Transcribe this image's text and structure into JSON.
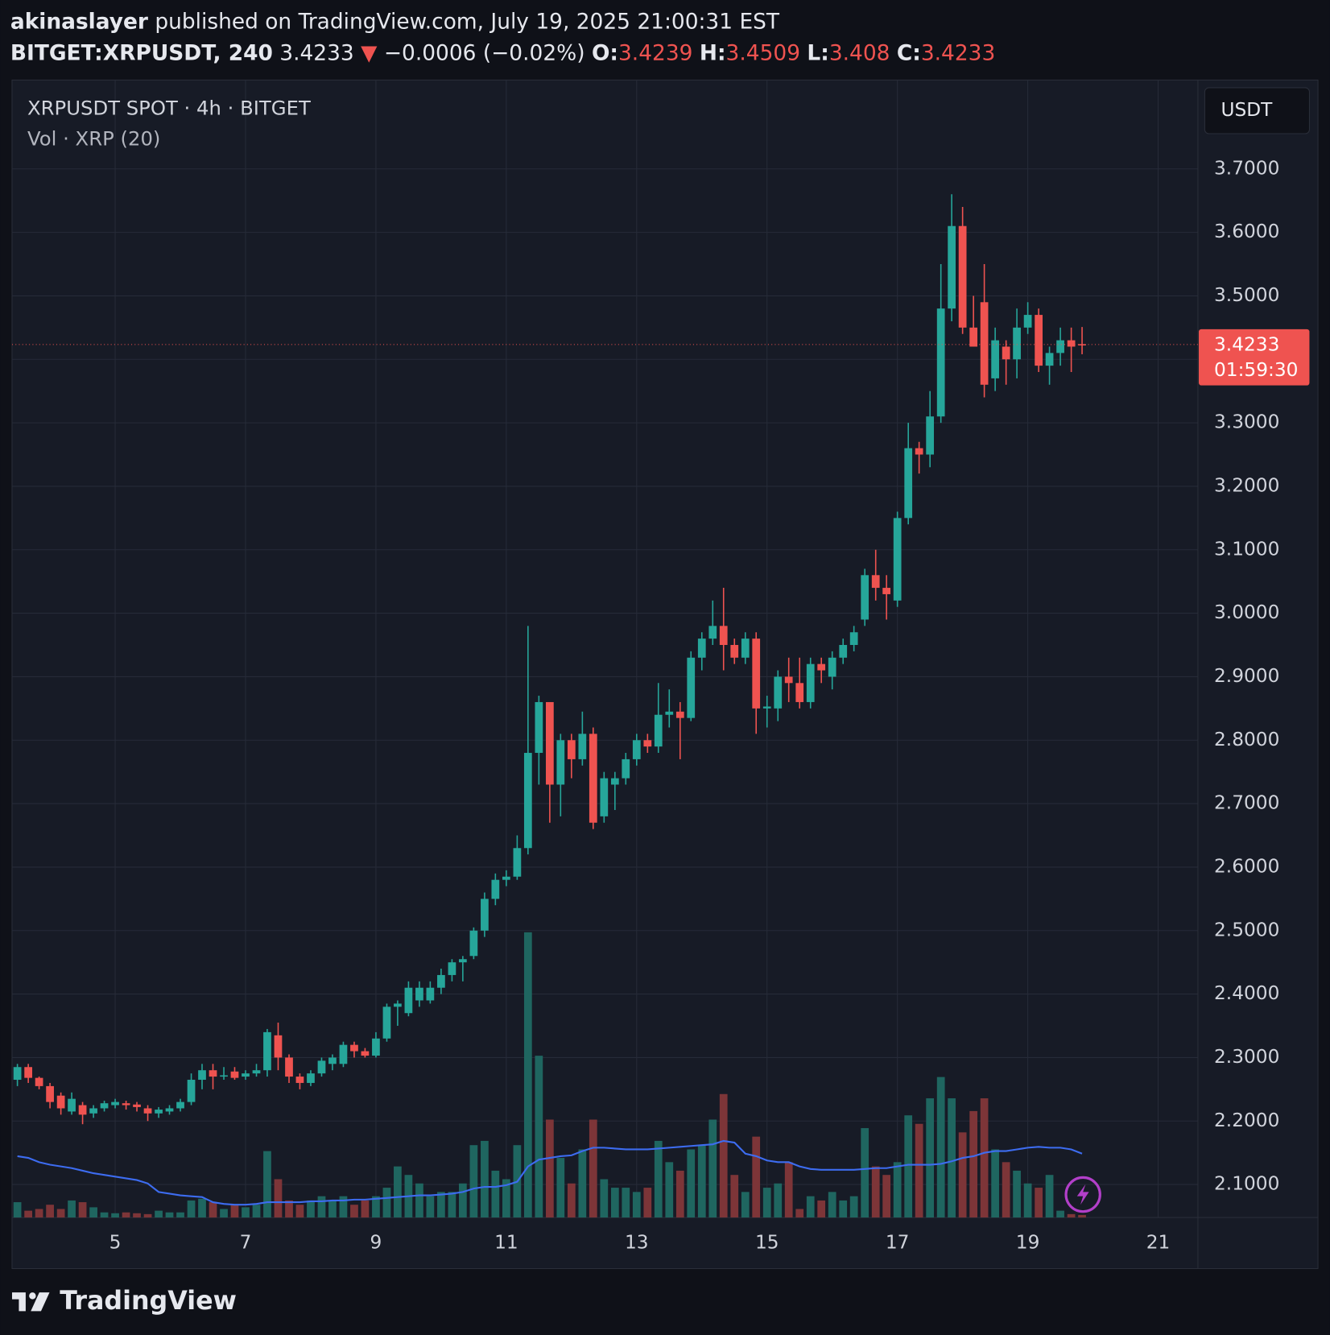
{
  "header": {
    "author": "akinaslayer",
    "published": "published on TradingView.com, July 19, 2025 21:00:31 EST",
    "symbol": "BITGET:XRPUSDT, 240",
    "arrow": "▼",
    "change": "−0.0006 (−0.02%)",
    "o_label": "O:",
    "h_label": "H:",
    "l_label": "L:",
    "c_label": "C:",
    "currency": "USDT",
    "countdown": "01:59:30",
    "brand": "TradingView"
  },
  "chart_data": {
    "type": "candlestick",
    "title": "XRPUSDT SPOT · 4h · BITGET",
    "subtitle": "Vol · XRP (20)",
    "up_color": "#26a69a",
    "down_color": "#ef5350",
    "volume_up_color": "#1f6660",
    "volume_down_color": "#7d3538",
    "volume_ma_color": "#3d6cf0",
    "grid": true,
    "x": [
      3.5,
      3.667,
      3.833,
      4,
      4.167,
      4.333,
      4.5,
      4.667,
      4.833,
      5,
      5.167,
      5.333,
      5.5,
      5.667,
      5.833,
      6,
      6.167,
      6.333,
      6.5,
      6.667,
      6.833,
      7,
      7.167,
      7.333,
      7.5,
      7.667,
      7.833,
      8,
      8.167,
      8.333,
      8.5,
      8.667,
      8.833,
      9,
      9.167,
      9.333,
      9.5,
      9.667,
      9.833,
      10,
      10.167,
      10.333,
      10.5,
      10.667,
      10.833,
      11,
      11.167,
      11.333,
      11.5,
      11.667,
      11.833,
      12,
      12.167,
      12.333,
      12.5,
      12.667,
      12.833,
      13,
      13.167,
      13.333,
      13.5,
      13.667,
      13.833,
      14,
      14.167,
      14.333,
      14.5,
      14.667,
      14.833,
      15,
      15.167,
      15.333,
      15.5,
      15.667,
      15.833,
      16,
      16.167,
      16.333,
      16.5,
      16.667,
      16.833,
      17,
      17.167,
      17.333,
      17.5,
      17.667,
      17.833,
      18,
      18.167,
      18.333,
      18.5,
      18.667,
      18.833,
      19,
      19.167,
      19.333,
      19.5,
      19.667,
      19.833
    ],
    "open": [
      2.265,
      2.285,
      2.268,
      2.255,
      2.24,
      2.215,
      2.225,
      2.212,
      2.22,
      2.225,
      2.228,
      2.226,
      2.22,
      2.212,
      2.215,
      2.22,
      2.23,
      2.265,
      2.28,
      2.27,
      2.278,
      2.27,
      2.275,
      2.28,
      2.335,
      2.3,
      2.27,
      2.26,
      2.275,
      2.29,
      2.29,
      2.32,
      2.31,
      2.303,
      2.33,
      2.38,
      2.37,
      2.39,
      2.39,
      2.41,
      2.43,
      2.45,
      2.46,
      2.5,
      2.55,
      2.58,
      2.585,
      2.63,
      2.78,
      2.86,
      2.73,
      2.8,
      2.77,
      2.81,
      2.68,
      2.73,
      2.74,
      2.77,
      2.8,
      2.79,
      2.84,
      2.845,
      2.835,
      2.93,
      2.96,
      2.98,
      2.95,
      2.93,
      2.96,
      2.85,
      2.85,
      2.9,
      2.89,
      2.86,
      2.92,
      2.9,
      2.93,
      2.95,
      2.99,
      3.06,
      3.04,
      3.02,
      3.15,
      3.26,
      3.25,
      3.31,
      3.48,
      3.61,
      3.45,
      3.49,
      3.37,
      3.42,
      3.4,
      3.45,
      3.47,
      3.39,
      3.41,
      3.43,
      3.4239
    ],
    "high": [
      2.29,
      2.29,
      2.27,
      2.26,
      2.245,
      2.245,
      2.23,
      2.225,
      2.232,
      2.235,
      2.232,
      2.23,
      2.225,
      2.222,
      2.225,
      2.235,
      2.275,
      2.29,
      2.29,
      2.285,
      2.285,
      2.28,
      2.29,
      2.345,
      2.355,
      2.305,
      2.275,
      2.28,
      2.3,
      2.305,
      2.325,
      2.325,
      2.315,
      2.34,
      2.385,
      2.39,
      2.42,
      2.42,
      2.42,
      2.44,
      2.455,
      2.46,
      2.505,
      2.56,
      2.59,
      2.595,
      2.65,
      2.98,
      2.87,
      2.86,
      2.81,
      2.81,
      2.845,
      2.82,
      2.75,
      2.75,
      2.78,
      2.81,
      2.81,
      2.89,
      2.88,
      2.86,
      2.94,
      2.97,
      3.02,
      3.04,
      2.96,
      2.97,
      2.97,
      2.87,
      2.91,
      2.93,
      2.93,
      2.93,
      2.93,
      2.94,
      2.96,
      2.98,
      3.07,
      3.1,
      3.06,
      3.16,
      3.3,
      3.27,
      3.35,
      3.55,
      3.66,
      3.64,
      3.5,
      3.55,
      3.45,
      3.43,
      3.48,
      3.49,
      3.48,
      3.42,
      3.45,
      3.45,
      3.4509
    ],
    "low": [
      2.255,
      2.26,
      2.25,
      2.22,
      2.21,
      2.21,
      2.195,
      2.205,
      2.215,
      2.22,
      2.218,
      2.215,
      2.2,
      2.205,
      2.21,
      2.215,
      2.225,
      2.25,
      2.25,
      2.265,
      2.265,
      2.265,
      2.27,
      2.27,
      2.28,
      2.26,
      2.25,
      2.255,
      2.27,
      2.28,
      2.285,
      2.3,
      2.3,
      2.3,
      2.325,
      2.35,
      2.365,
      2.38,
      2.385,
      2.4,
      2.42,
      2.42,
      2.455,
      2.49,
      2.54,
      2.57,
      2.58,
      2.62,
      2.73,
      2.67,
      2.68,
      2.74,
      2.76,
      2.66,
      2.67,
      2.69,
      2.73,
      2.76,
      2.78,
      2.78,
      2.82,
      2.77,
      2.83,
      2.91,
      2.95,
      2.91,
      2.92,
      2.92,
      2.81,
      2.82,
      2.83,
      2.86,
      2.85,
      2.85,
      2.89,
      2.88,
      2.92,
      2.94,
      2.98,
      3.02,
      2.99,
      3.01,
      3.14,
      3.22,
      3.23,
      3.3,
      3.46,
      3.44,
      3.42,
      3.34,
      3.35,
      3.36,
      3.37,
      3.44,
      3.38,
      3.36,
      3.39,
      3.38,
      3.408
    ],
    "close": [
      2.285,
      2.268,
      2.255,
      2.23,
      2.22,
      2.235,
      2.21,
      2.22,
      2.228,
      2.23,
      2.225,
      2.222,
      2.212,
      2.218,
      2.22,
      2.23,
      2.265,
      2.28,
      2.27,
      2.272,
      2.268,
      2.275,
      2.28,
      2.34,
      2.3,
      2.27,
      2.26,
      2.275,
      2.295,
      2.3,
      2.32,
      2.31,
      2.303,
      2.33,
      2.38,
      2.385,
      2.41,
      2.41,
      2.41,
      2.43,
      2.45,
      2.455,
      2.5,
      2.55,
      2.58,
      2.585,
      2.63,
      2.78,
      2.86,
      2.73,
      2.8,
      2.77,
      2.81,
      2.67,
      2.74,
      2.74,
      2.77,
      2.8,
      2.79,
      2.84,
      2.845,
      2.835,
      2.93,
      2.96,
      2.98,
      2.95,
      2.93,
      2.96,
      2.85,
      2.853,
      2.9,
      2.89,
      2.86,
      2.92,
      2.91,
      2.93,
      2.95,
      2.97,
      3.06,
      3.04,
      3.03,
      3.15,
      3.26,
      3.25,
      3.31,
      3.48,
      3.61,
      3.45,
      3.42,
      3.36,
      3.43,
      3.4,
      3.45,
      3.47,
      3.39,
      3.41,
      3.43,
      3.42,
      3.4233
    ],
    "volume": [
      18,
      8,
      10,
      15,
      10,
      20,
      18,
      12,
      6,
      5,
      6,
      5,
      4,
      8,
      6,
      6,
      20,
      22,
      18,
      10,
      15,
      12,
      15,
      78,
      45,
      20,
      15,
      20,
      25,
      20,
      25,
      15,
      20,
      25,
      35,
      60,
      50,
      40,
      25,
      30,
      30,
      40,
      85,
      90,
      55,
      45,
      85,
      335,
      190,
      115,
      70,
      40,
      80,
      115,
      45,
      35,
      35,
      30,
      35,
      90,
      65,
      55,
      80,
      85,
      115,
      145,
      50,
      30,
      95,
      35,
      40,
      65,
      10,
      25,
      20,
      30,
      20,
      25,
      105,
      60,
      50,
      65,
      120,
      110,
      140,
      165,
      140,
      100,
      125,
      140,
      80,
      65,
      55,
      40,
      35,
      50,
      8,
      4,
      3
    ],
    "volume_ma": [
      72,
      70,
      65,
      62,
      60,
      58,
      55,
      52,
      50,
      48,
      46,
      44,
      40,
      30,
      28,
      26,
      25,
      24,
      18,
      16,
      15,
      15,
      16,
      18,
      18,
      18,
      18,
      19,
      19,
      20,
      20,
      21,
      21,
      22,
      23,
      24,
      25,
      26,
      26,
      27,
      28,
      30,
      34,
      36,
      36,
      38,
      42,
      60,
      68,
      70,
      72,
      73,
      78,
      82,
      82,
      81,
      80,
      80,
      80,
      81,
      82,
      83,
      84,
      85,
      86,
      90,
      88,
      75,
      72,
      67,
      65,
      65,
      60,
      57,
      56,
      56,
      56,
      56,
      57,
      58,
      58,
      60,
      62,
      62,
      62,
      63,
      66,
      70,
      72,
      76,
      78,
      78,
      80,
      82,
      83,
      82,
      82,
      80,
      75
    ],
    "xlim": [
      3.418,
      21.61
    ],
    "xticks": [
      5,
      7,
      9,
      11,
      13,
      15,
      17,
      19,
      21
    ],
    "ylim": [
      2.048,
      3.84
    ],
    "yticks": [
      {
        "value": 2.1,
        "label": "2.1000"
      },
      {
        "value": 2.2,
        "label": "2.2000"
      },
      {
        "value": 2.3,
        "label": "2.3000"
      },
      {
        "value": 2.4,
        "label": "2.4000"
      },
      {
        "value": 2.5,
        "label": "2.5000"
      },
      {
        "value": 2.6,
        "label": "2.6000"
      },
      {
        "value": 2.7,
        "label": "2.7000"
      },
      {
        "value": 2.8,
        "label": "2.8000"
      },
      {
        "value": 2.9,
        "label": "2.9000"
      },
      {
        "value": 3.0,
        "label": "3.0000"
      },
      {
        "value": 3.1,
        "label": "3.1000"
      },
      {
        "value": 3.2,
        "label": "3.2000"
      },
      {
        "value": 3.3,
        "label": "3.3000"
      },
      {
        "value": 3.4,
        "label": "3.4000"
      },
      {
        "value": 3.5,
        "label": "3.5000"
      },
      {
        "value": 3.6,
        "label": "3.6000"
      },
      {
        "value": 3.7,
        "label": "3.7000"
      }
    ]
  }
}
